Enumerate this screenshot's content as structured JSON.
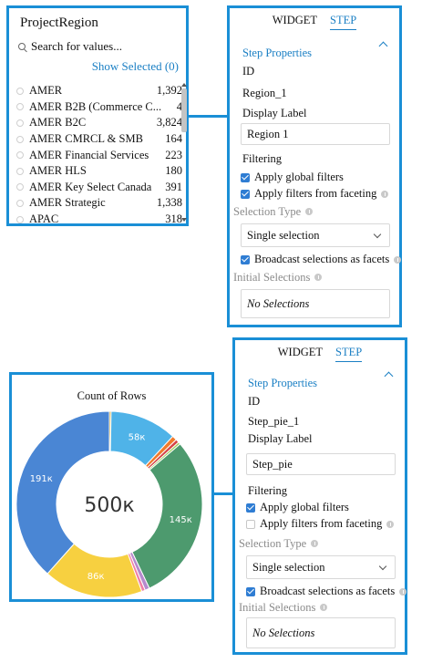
{
  "list_widget": {
    "title": "ProjectRegion",
    "search_placeholder": "Search for values...",
    "show_selected": "Show Selected (0)",
    "items": [
      {
        "label": "AMER",
        "count": "1,392"
      },
      {
        "label": "AMER B2B (Commerce C...",
        "count": "4"
      },
      {
        "label": "AMER B2C",
        "count": "3,824"
      },
      {
        "label": "AMER CMRCL & SMB",
        "count": "164"
      },
      {
        "label": "AMER Financial Services",
        "count": "223"
      },
      {
        "label": "AMER HLS",
        "count": "180"
      },
      {
        "label": "AMER Key Select Canada",
        "count": "391"
      },
      {
        "label": "AMER Strategic",
        "count": "1,338"
      },
      {
        "label": "APAC",
        "count": "318"
      }
    ]
  },
  "props1": {
    "tab_widget": "WIDGET",
    "tab_step": "STEP",
    "section_title": "Step Properties",
    "id_label": "ID",
    "id_value": "Region_1",
    "display_label": "Display Label",
    "display_value": "Region 1",
    "filtering_label": "Filtering",
    "apply_global": "Apply global filters",
    "apply_faceting": "Apply filters from faceting",
    "selection_type_label": "Selection Type",
    "selection_type_value": "Single selection",
    "broadcast": "Broadcast selections as facets",
    "initial_selections_label": "Initial Selections",
    "initial_selections_value": "No Selections"
  },
  "props2": {
    "tab_widget": "WIDGET",
    "tab_step": "STEP",
    "section_title": "Step Properties",
    "id_label": "ID",
    "id_value": "Step_pie_1",
    "display_label": "Display Label",
    "display_value": "Step_pie",
    "filtering_label": "Filtering",
    "apply_global": "Apply global filters",
    "apply_faceting": "Apply filters from faceting",
    "selection_type_label": "Selection Type",
    "selection_type_value": "Single selection",
    "broadcast": "Broadcast selections as facets",
    "initial_selections_label": "Initial Selections",
    "initial_selections_value": "No Selections"
  },
  "colors": {
    "accent": "#1a8fd6",
    "link": "#1a7fc4"
  },
  "chart_data": {
    "type": "pie",
    "title": "Count of Rows",
    "center_label": "500к",
    "slices": [
      {
        "value": 1.5,
        "label": "",
        "color": "#c9a227"
      },
      {
        "value": 58,
        "label": "58к",
        "color": "#4fb3e8"
      },
      {
        "value": 4,
        "label": "",
        "color": "#f07a2c"
      },
      {
        "value": 3,
        "label": "",
        "color": "#d64545"
      },
      {
        "value": 2,
        "label": "",
        "color": "#9bcc58"
      },
      {
        "value": 145,
        "label": "145к",
        "color": "#4d9a6e"
      },
      {
        "value": 4,
        "label": "",
        "color": "#b58acd"
      },
      {
        "value": 3,
        "label": "",
        "color": "#f07fa6"
      },
      {
        "value": 86,
        "label": "86к",
        "color": "#f7d040"
      },
      {
        "value": 191,
        "label": "191к",
        "color": "#4a86d4"
      }
    ]
  }
}
